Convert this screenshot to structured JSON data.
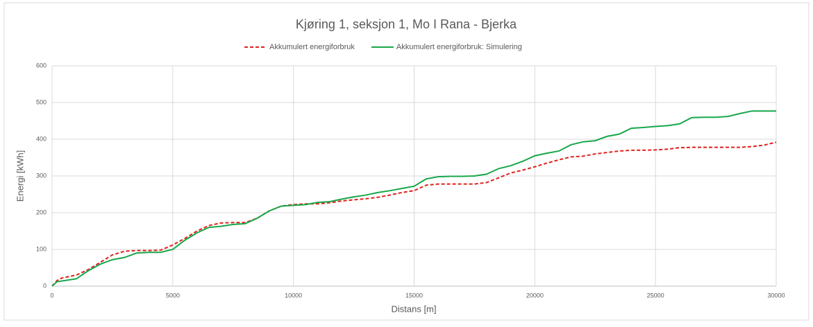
{
  "chart_data": {
    "type": "line",
    "title": "Kjøring 1, seksjon 1, Mo I Rana - Bjerka",
    "x_label": "Distans [m]",
    "y_label": "Energi [kWh]",
    "x": [
      0,
      200,
      400,
      1000,
      1500,
      2000,
      2500,
      3000,
      3500,
      4000,
      4500,
      5000,
      5500,
      6000,
      6500,
      7000,
      7500,
      8000,
      8500,
      9000,
      9500,
      10000,
      10500,
      11000,
      11500,
      12000,
      12500,
      13000,
      13500,
      14000,
      14500,
      15000,
      15500,
      16000,
      16500,
      17000,
      17500,
      18000,
      18500,
      19000,
      19500,
      20000,
      20500,
      21000,
      21500,
      22000,
      22500,
      23000,
      23500,
      24000,
      24500,
      25000,
      25500,
      26000,
      26500,
      27000,
      27500,
      28000,
      28500,
      29000,
      29500,
      30000
    ],
    "series": [
      {
        "name": "Akkumulert energiforbruk",
        "color": "#e0201b",
        "dash": true,
        "values": [
          0,
          15,
          22,
          30,
          45,
          65,
          85,
          95,
          97,
          97,
          98,
          112,
          130,
          150,
          165,
          172,
          173,
          173,
          185,
          205,
          218,
          222,
          224,
          224,
          227,
          232,
          235,
          238,
          242,
          248,
          255,
          260,
          275,
          278,
          278,
          278,
          278,
          282,
          295,
          308,
          316,
          325,
          335,
          344,
          352,
          354,
          360,
          364,
          368,
          370,
          370,
          371,
          373,
          377,
          378,
          378,
          378,
          378,
          378,
          380,
          384,
          392
        ]
      },
      {
        "name": "Akkumulert energiforbruk: Simulering",
        "color": "#17a74a",
        "dash": false,
        "values": [
          0,
          12,
          14,
          20,
          42,
          60,
          72,
          78,
          90,
          92,
          92,
          100,
          125,
          145,
          160,
          163,
          168,
          170,
          185,
          205,
          218,
          220,
          222,
          228,
          230,
          237,
          243,
          248,
          255,
          260,
          266,
          272,
          292,
          298,
          299,
          299,
          300,
          305,
          320,
          328,
          340,
          355,
          362,
          368,
          385,
          393,
          396,
          408,
          414,
          430,
          432,
          435,
          437,
          442,
          459,
          460,
          460,
          462,
          470,
          477,
          477,
          477
        ]
      }
    ],
    "xlim": [
      0,
      30000
    ],
    "xticks": [
      0,
      5000,
      10000,
      15000,
      20000,
      25000,
      30000
    ],
    "ylim": [
      0,
      600
    ],
    "yticks": [
      0,
      100,
      200,
      300,
      400,
      500,
      600
    ],
    "grid": true,
    "legend": "top"
  }
}
